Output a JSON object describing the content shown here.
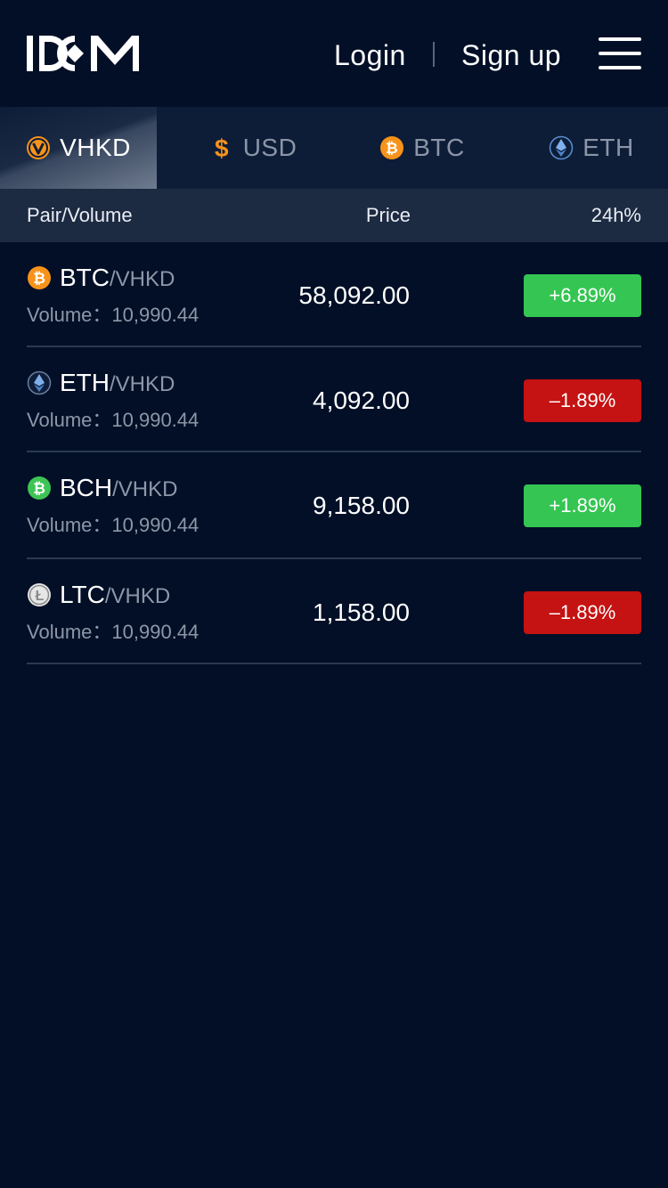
{
  "header": {
    "logo_text": "IDCM",
    "login_label": "Login",
    "signup_label": "Sign up",
    "menu_icon": "hamburger-menu-icon"
  },
  "tabs": [
    {
      "label": "VHKD",
      "icon": "vhkd-coin-icon",
      "active": true,
      "icon_color": "#f7931a"
    },
    {
      "label": "USD",
      "icon": "dollar-icon",
      "active": false,
      "icon_color": "#f7931a"
    },
    {
      "label": "BTC",
      "icon": "btc-coin-icon",
      "active": false,
      "icon_color": "#f7931a"
    },
    {
      "label": "ETH",
      "icon": "eth-coin-icon",
      "active": false,
      "icon_color": "#5a8fd0"
    }
  ],
  "columns": {
    "pair": "Pair/Volume",
    "price": "Price",
    "change": "24h%"
  },
  "pairs": [
    {
      "base": "BTC",
      "quote": "/VHKD",
      "volume_label": "Volume：",
      "volume": "10,990.44",
      "price": "58,092.00",
      "change": "+6.89%",
      "direction": "up",
      "icon": "btc-coin-icon"
    },
    {
      "base": "ETH",
      "quote": "/VHKD",
      "volume_label": "Volume：",
      "volume": "10,990.44",
      "price": "4,092.00",
      "change": "–1.89%",
      "direction": "down",
      "icon": "eth-coin-icon"
    },
    {
      "base": "BCH",
      "quote": "/VHKD",
      "volume_label": "Volume：",
      "volume": "10,990.44",
      "price": "9,158.00",
      "change": "+1.89%",
      "direction": "up",
      "icon": "bch-coin-icon"
    },
    {
      "base": "LTC",
      "quote": "/VHKD",
      "volume_label": "Volume：",
      "volume": "10,990.44",
      "price": "1,158.00",
      "change": "–1.89%",
      "direction": "down",
      "icon": "ltc-coin-icon"
    }
  ],
  "colors": {
    "background": "#020f27",
    "up": "#35c552",
    "down": "#c51212",
    "btc_orange": "#f7931a",
    "bch_green": "#3cc455"
  }
}
